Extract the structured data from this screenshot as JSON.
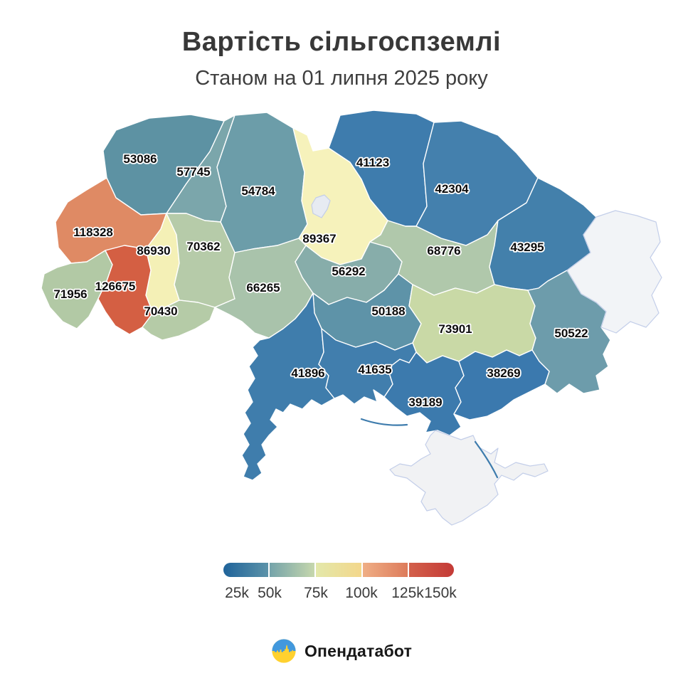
{
  "title": "Вартість сільгоспземлі",
  "subtitle": "Станом на 01 липня 2025 року",
  "map": {
    "regions": [
      {
        "id": "volyn",
        "value": "53086",
        "color": "#5d92a3"
      },
      {
        "id": "rivne",
        "value": "57745",
        "color": "#7ba6ab"
      },
      {
        "id": "zhytomyr",
        "value": "54784",
        "color": "#6c9da9"
      },
      {
        "id": "kyiv_oblast",
        "value": "89367",
        "color": "#f6f2bb"
      },
      {
        "id": "chernihiv",
        "value": "41123",
        "color": "#3e7cad"
      },
      {
        "id": "sumy",
        "value": "42304",
        "color": "#4480ad"
      },
      {
        "id": "lviv",
        "value": "118328",
        "color": "#df8a64"
      },
      {
        "id": "ternopil",
        "value": "86930",
        "color": "#f4f0b6"
      },
      {
        "id": "khmelnytskyi",
        "value": "70362",
        "color": "#b6cba9"
      },
      {
        "id": "zakarpattia",
        "value": "71956",
        "color": "#b2c9a5"
      },
      {
        "id": "ivano_frankivsk",
        "value": "126675",
        "color": "#d45f43"
      },
      {
        "id": "chernivtsi",
        "value": "70430",
        "color": "#b5cba7"
      },
      {
        "id": "vinnytsia",
        "value": "66265",
        "color": "#a9c3ab"
      },
      {
        "id": "cherkasy",
        "value": "56292",
        "color": "#87adaa"
      },
      {
        "id": "kirovohrad",
        "value": "50188",
        "color": "#5e93a8"
      },
      {
        "id": "poltava",
        "value": "68776",
        "color": "#b0c8ab"
      },
      {
        "id": "kharkiv",
        "value": "43295",
        "color": "#4380ab"
      },
      {
        "id": "dnipro",
        "value": "73901",
        "color": "#c9d9a6"
      },
      {
        "id": "donetsk",
        "value": "50522",
        "color": "#6d9cab"
      },
      {
        "id": "odesa",
        "value": "41896",
        "color": "#3f7dac"
      },
      {
        "id": "mykolaiv",
        "value": "41635",
        "color": "#417ead"
      },
      {
        "id": "kherson",
        "value": "39189",
        "color": "#3c7aad"
      },
      {
        "id": "zaporizhzhia",
        "value": "38269",
        "color": "#3b79ae"
      }
    ],
    "no_data_regions": [
      {
        "id": "luhansk",
        "color": "#f2f4f7"
      },
      {
        "id": "crimea",
        "color": "#f1f2f4"
      },
      {
        "id": "kyiv_city",
        "color": "#e7ebf2"
      }
    ]
  },
  "legend": {
    "ticks": [
      "25k",
      "50k",
      "75k",
      "100k",
      "125k",
      "150k"
    ],
    "gradient_segments": [
      [
        "#1f639a",
        "#5c93a9"
      ],
      [
        "#74a3aa",
        "#c6d7ac"
      ],
      [
        "#e3e8aa",
        "#f3d78b"
      ],
      [
        "#efae85",
        "#dd7b5b"
      ],
      [
        "#d3604b",
        "#c43a36"
      ]
    ]
  },
  "footer": {
    "brand": "Опендатабот",
    "logo_colors": {
      "top": "#4298dd",
      "bottom": "#ffd12f"
    }
  },
  "chart_data": {
    "type": "choropleth",
    "title": "Вартість сільгоспземлі",
    "subtitle": "Станом на 01 липня 2025 року",
    "legend_tick_labels": [
      "25k",
      "50k",
      "75k",
      "100k",
      "125k",
      "150k"
    ],
    "scale": {
      "min": 25000,
      "max": 150000,
      "palette": "blue-teal-yellow-orange-red"
    },
    "values": [
      {
        "region": "volyn",
        "value": 53086
      },
      {
        "region": "rivne",
        "value": 57745
      },
      {
        "region": "zhytomyr",
        "value": 54784
      },
      {
        "region": "kyiv_oblast",
        "value": 89367
      },
      {
        "region": "chernihiv",
        "value": 41123
      },
      {
        "region": "sumy",
        "value": 42304
      },
      {
        "region": "lviv",
        "value": 118328
      },
      {
        "region": "ternopil",
        "value": 86930
      },
      {
        "region": "khmelnytskyi",
        "value": 70362
      },
      {
        "region": "zakarpattia",
        "value": 71956
      },
      {
        "region": "ivano_frankivsk",
        "value": 126675
      },
      {
        "region": "chernivtsi",
        "value": 70430
      },
      {
        "region": "vinnytsia",
        "value": 66265
      },
      {
        "region": "cherkasy",
        "value": 56292
      },
      {
        "region": "kirovohrad",
        "value": 50188
      },
      {
        "region": "poltava",
        "value": 68776
      },
      {
        "region": "kharkiv",
        "value": 43295
      },
      {
        "region": "dnipro",
        "value": 73901
      },
      {
        "region": "donetsk",
        "value": 50522
      },
      {
        "region": "odesa",
        "value": 41896
      },
      {
        "region": "mykolaiv",
        "value": 41635
      },
      {
        "region": "kherson",
        "value": 39189
      },
      {
        "region": "zaporizhzhia",
        "value": 38269
      }
    ],
    "no_data_regions": [
      "luhansk",
      "crimea",
      "kyiv_city"
    ]
  }
}
